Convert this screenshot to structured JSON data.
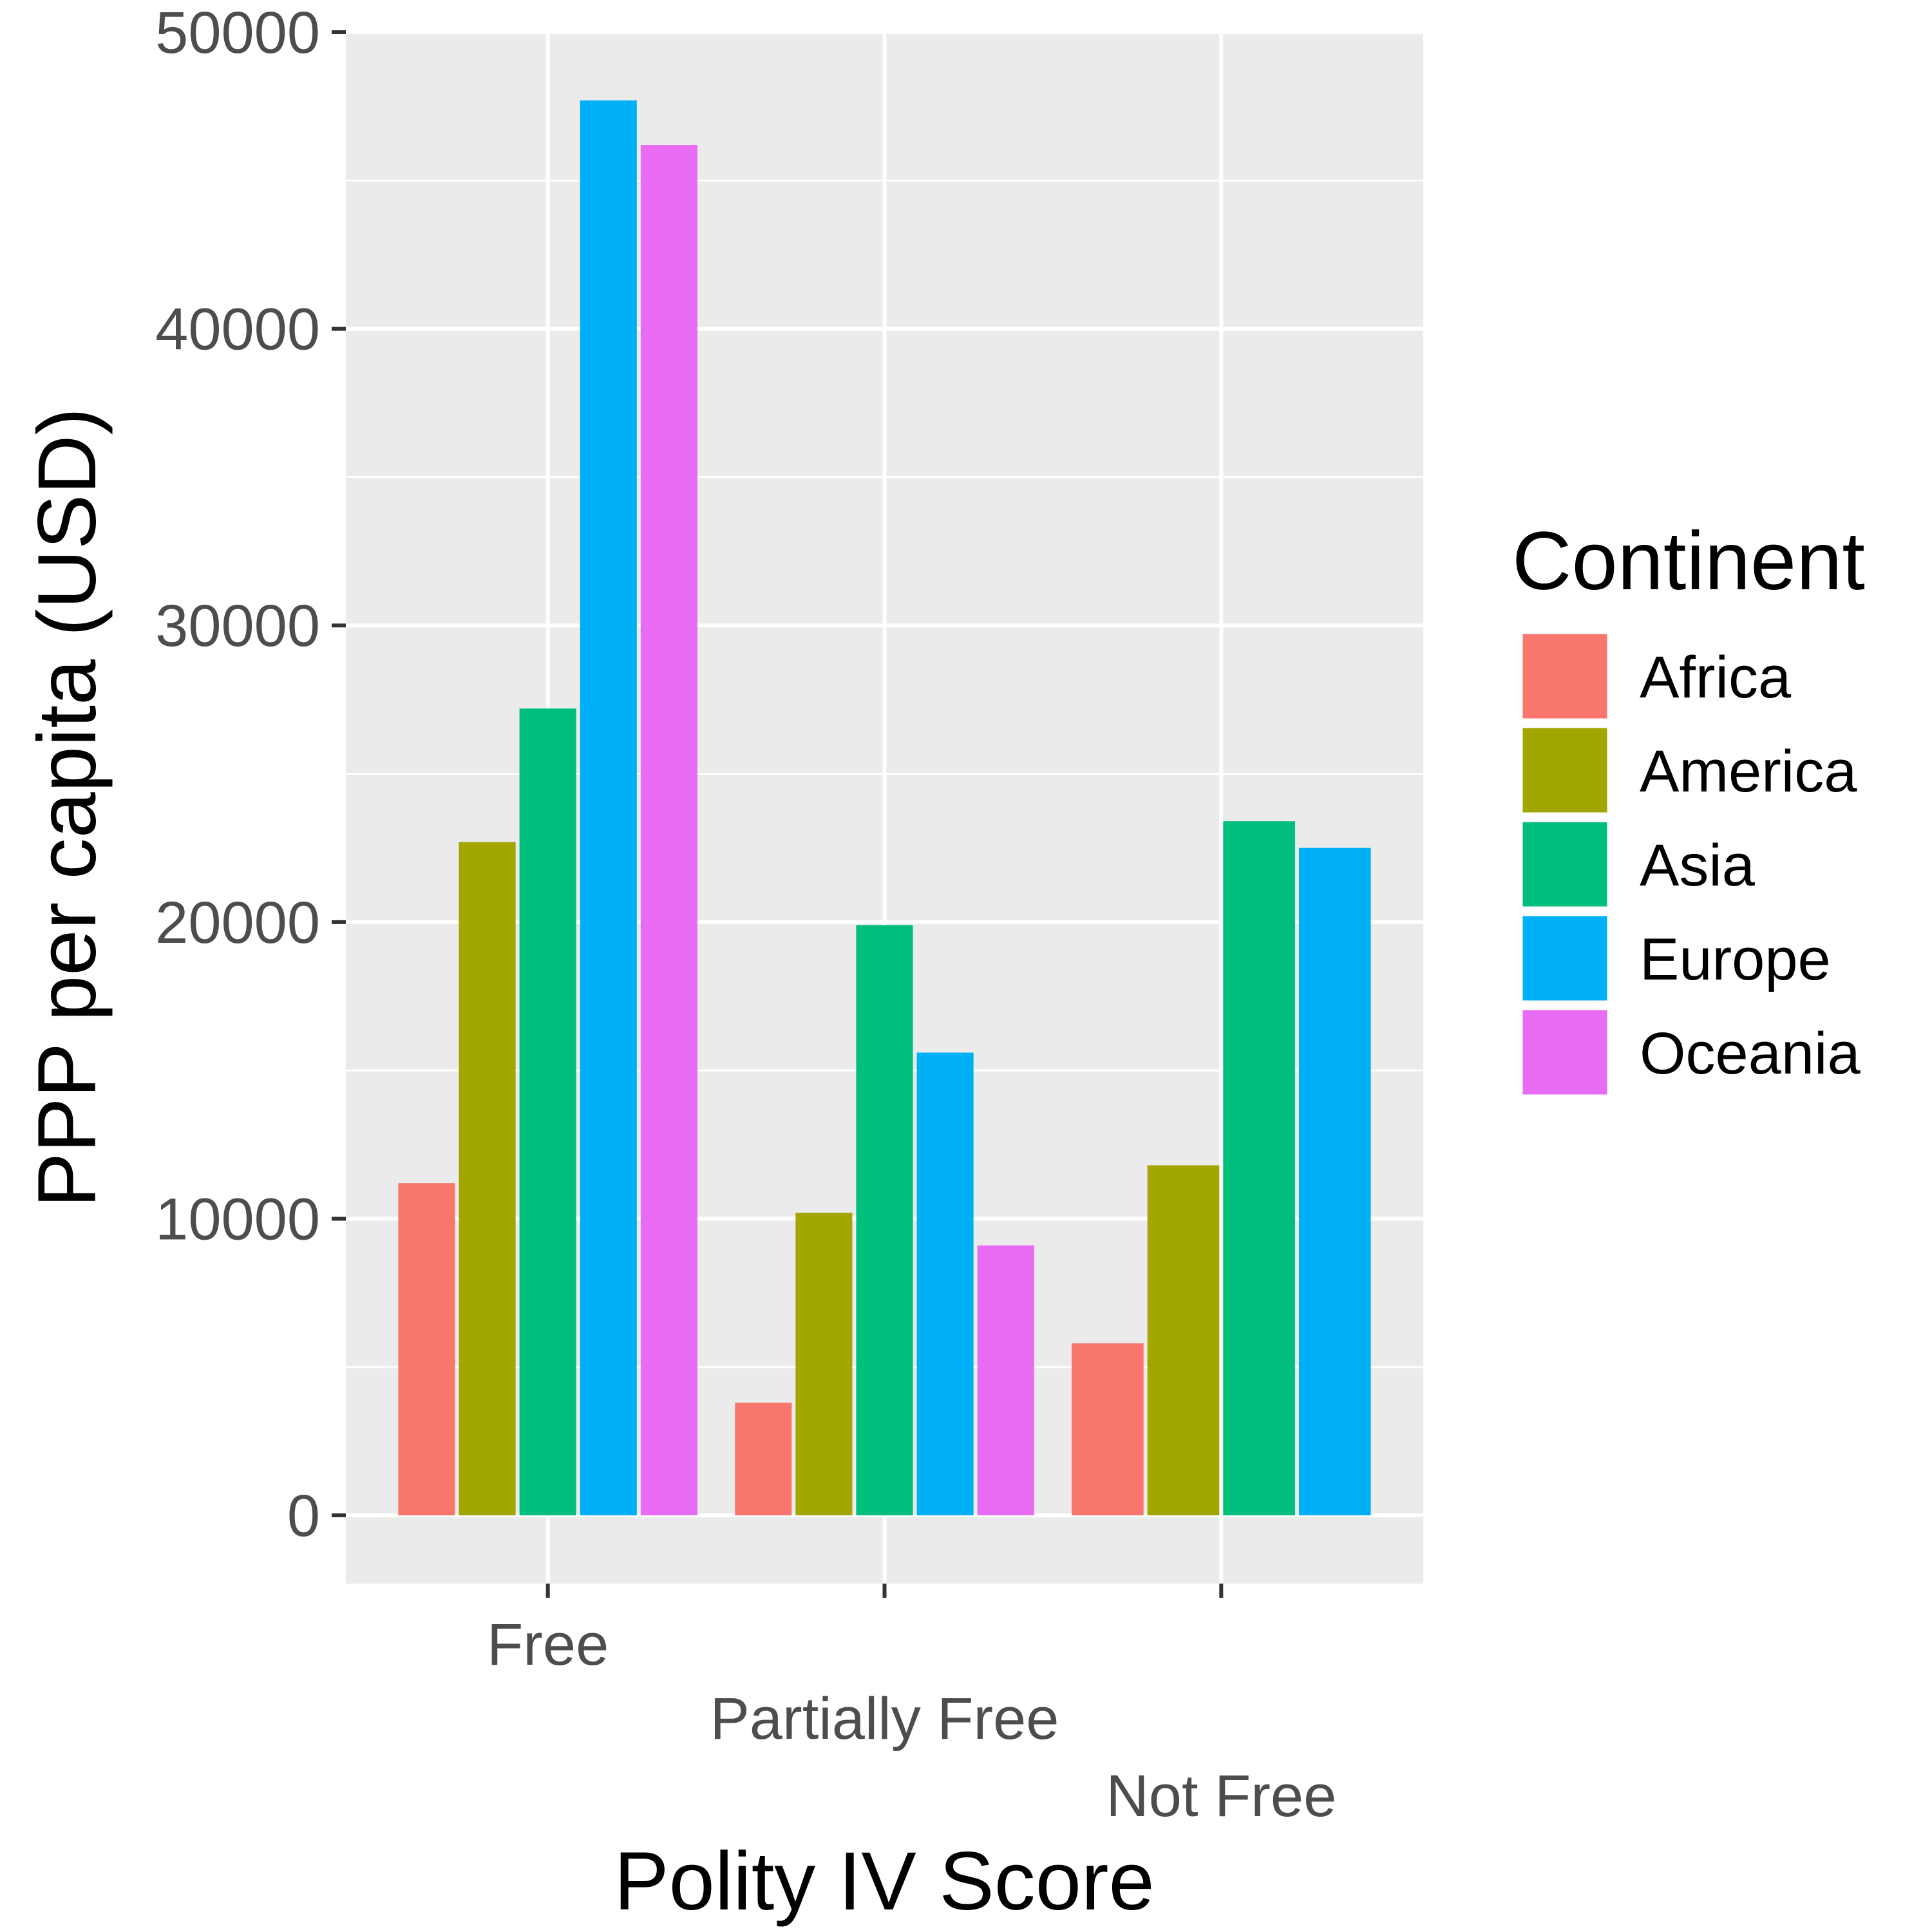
{
  "chart_data": {
    "type": "bar",
    "title": "",
    "xlabel": "Polity IV Score",
    "ylabel": "PPP per capita (USD)",
    "ylim": [
      -2300,
      50000
    ],
    "yticks": [
      0,
      10000,
      20000,
      30000,
      40000,
      50000
    ],
    "ytick_labels": [
      "0",
      "10000",
      "20000",
      "30000",
      "40000",
      "50000"
    ],
    "grid": true,
    "legend_position": "right",
    "legend_title": "Continent",
    "categories": [
      "Free",
      "Partially Free",
      "Not Free"
    ],
    "series": [
      {
        "name": "Africa",
        "color": "#F8766D",
        "values": [
          11200,
          3800,
          5800
        ]
      },
      {
        "name": "America",
        "color": "#A3A500",
        "values": [
          22700,
          10200,
          11800
        ]
      },
      {
        "name": "Asia",
        "color": "#00BF7D",
        "values": [
          27200,
          19900,
          23400
        ]
      },
      {
        "name": "Europe",
        "color": "#00B0F6",
        "values": [
          47700,
          15600,
          22500
        ]
      },
      {
        "name": "Oceania",
        "color": "#E76BF3",
        "values": [
          46200,
          9100,
          null
        ]
      }
    ]
  }
}
